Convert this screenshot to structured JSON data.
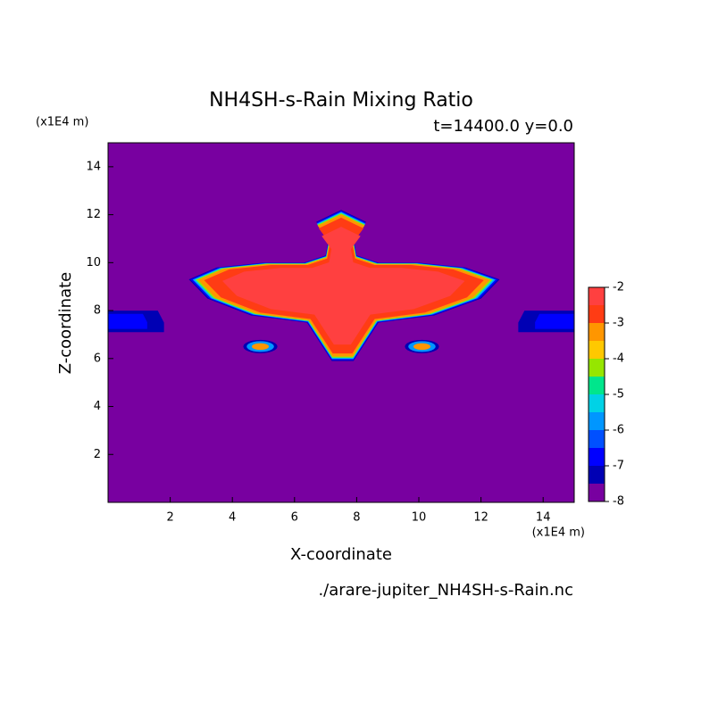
{
  "chart_data": {
    "type": "contour",
    "title": "NH4SH-s-Rain Mixing Ratio",
    "subtitle": "t=14400.0 y=0.0",
    "x_label": "X-coordinate",
    "y_label": "Z-coordinate",
    "x_unit": "(x1E4 m)",
    "y_unit": "(x1E4 m)",
    "source": "./arare-jupiter_NH4SH-s-Rain.nc",
    "xlim": [
      0,
      15
    ],
    "xticks": [
      2,
      4,
      6,
      8,
      10,
      12,
      14
    ],
    "ylim": [
      0,
      15
    ],
    "yticks": [
      2,
      4,
      6,
      8,
      10,
      12,
      14
    ],
    "levels": [
      -8,
      -7.5,
      -7,
      -6.5,
      -6,
      -5.5,
      -5,
      -4.5,
      -4,
      -3.5,
      -3,
      -2.5,
      -2
    ],
    "colors": [
      "#7800a0",
      "#0000b4",
      "#0000ff",
      "#0050ff",
      "#0096ff",
      "#00d2e6",
      "#00e68c",
      "#96e600",
      "#ffc800",
      "#ff9600",
      "#ff3c14",
      "#ff4040",
      "#ffaaaa"
    ],
    "colorbar_ticks": [
      -8,
      -7,
      -6,
      -5,
      -4,
      -3,
      -2
    ]
  }
}
